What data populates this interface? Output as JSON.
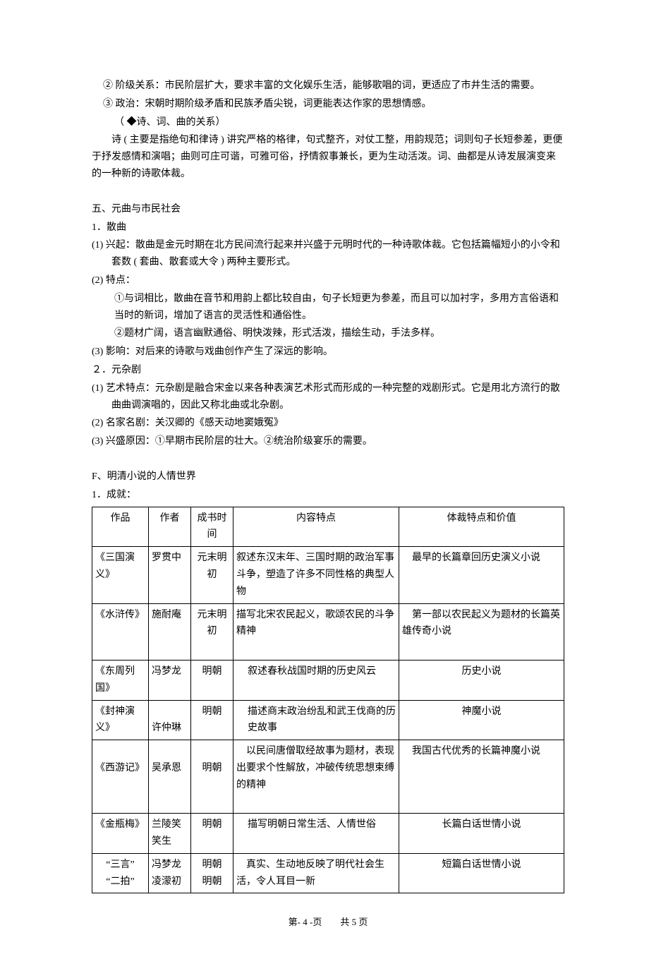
{
  "top": {
    "p1": "② 阶级关系：市民阶层扩大，要求丰富的文化娱乐生活，能够歌唱的词，更适应了市井生活的需要。",
    "p2": "③  政治：宋朝时期阶级矛盾和民族矛盾尖锐，词更能表达作家的思想情感。",
    "p3": "（  ◆诗、词、曲的关系）",
    "p4": "诗 ( 主要是指绝句和律诗 ) 讲究严格的格律，句式整齐，对仗工整，用韵规范；词则句子长短参差，更便于抒发感情和演唱；曲则可庄可谐，可雅可俗，抒情叙事兼长，更为生动活泼。词、曲都是从诗发展演变来的一种新的诗歌体裁。"
  },
  "sec5": {
    "title": "五、元曲与市民社会",
    "s1": "1．散曲",
    "s1_1": "(1) 兴起：散曲是金元时期在北方民间流行起来并兴盛于元明时代的一种诗歌体裁。它包括篇幅短小的小令和套数 ( 套曲、散套或大令 ) 两种主要形式。",
    "s1_2": "(2) 特点：",
    "s1_2a": "①与词相比，散曲在音节和用韵上都比较自由，句子长短更为参差，而且可以加衬字，多用方言俗语和当时的新词，增加了语言的灵活性和通俗性。",
    "s1_2b": "②题材广阔，语言幽默通俗、明快泼辣，形式活泼，描绘生动，手法多样。",
    "s1_3": "(3) 影响：对后来的诗歌与戏曲创作产生了深远的影响。",
    "s2": "２．元杂剧",
    "s2_1": "(1) 艺术特点：元杂剧是融合宋金以来各种表演艺术形式而形成的一种完整的戏剧形式。它是用北方流行的散曲曲调演唱的，因此又称北曲或北杂剧。",
    "s2_2": "(2) 名家名剧：关汉卿的《感天动地窦娥冤》",
    "s2_3": "(3) 兴盛原因：①早期市民阶层的壮大。②统治阶级宴乐的需要。"
  },
  "secF": {
    "title": "F、明清小说的人情世界",
    "sub": "1．成就："
  },
  "table": {
    "headers": [
      "作品",
      "作者",
      "成书时间",
      "内容特点",
      "体裁特点和价值"
    ],
    "rows": [
      {
        "work": "《三国演义》",
        "author": "罗贯中",
        "time": "元末明初",
        "content": "叙述东汉末年、三国时期的政治军事斗争，塑造了许多不同性格的典型人物",
        "content_indent": false,
        "value": "　最早的长篇章回历史演义小说"
      },
      {
        "work": "《水浒传》",
        "author": "施耐庵",
        "time": "元末明初",
        "content": "描写北宋农民起义，歌颂农民的斗争精神\n　",
        "content_indent": false,
        "value": "　第一部以农民起义为题材的长篇英雄传奇小说"
      },
      {
        "work": "《东周列国》",
        "author": "冯梦龙",
        "time": "明朝",
        "content": "叙述春秋战国时期的历史风云",
        "content_indent": true,
        "value": "历史小说",
        "value_center": true
      },
      {
        "work": "《封神演义》",
        "author": "\n许仲琳",
        "time": "明朝",
        "content": "描述商末政治纷乱和武王伐商的历史故事",
        "content_indent": true,
        "value": "神魔小说",
        "value_center": true
      },
      {
        "work": "\n《西游记》",
        "author": "\n吴承恩",
        "time": "\n明朝",
        "content": "　以民间唐僧取经故事为题材，表现出要求个性解放，冲破传统思想束缚的精神\n　",
        "content_indent": false,
        "value": "　我国古代优秀的长篇神魔小说"
      },
      {
        "work": "《金瓶梅》",
        "author": "兰陵笑笑生",
        "time": "明朝",
        "content": "描写明朝日常生活、人情世俗",
        "content_indent": true,
        "value": "长篇白话世情小说",
        "value_center": true
      },
      {
        "work": "“三言”\n“二拍”",
        "work_center": true,
        "author": "冯梦龙\n凌濛初",
        "time": "明朝\n明朝",
        "content": "　真实、生动地反映了明代社会生活，令人耳目一新",
        "content_indent": false,
        "value": "短篇白话世情小说",
        "value_center": true
      }
    ]
  },
  "footer": "第- 4 -页　　共 5 页"
}
